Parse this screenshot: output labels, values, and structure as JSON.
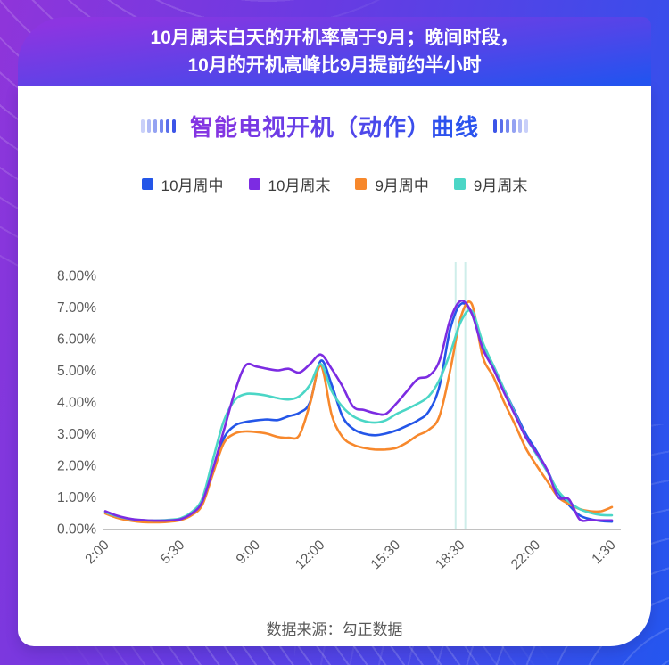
{
  "banner": {
    "line1": "10月周末白天的开机率高于9月；晚间时段，",
    "line2": "10月的开机高峰比9月提前约半小时"
  },
  "title": {
    "text": "智能电视开机（动作）曲线"
  },
  "footer": {
    "source": "数据来源：勾正数据"
  },
  "colors": {
    "series_oct_weekday": "#2456e8",
    "series_oct_weekend": "#7c2ce2",
    "series_sep_weekday": "#f7882c",
    "series_sep_weekend": "#4bd6c6",
    "axis_text": "#595959",
    "axis_line": "#c2c2c2",
    "reference_line": "#cfeeea"
  },
  "legend": [
    {
      "label": "10月周中",
      "color": "#2456e8"
    },
    {
      "label": "10月周末",
      "color": "#7c2ce2"
    },
    {
      "label": "9月周中",
      "color": "#f7882c"
    },
    {
      "label": "9月周末",
      "color": "#4bd6c6"
    }
  ],
  "chart_data": {
    "type": "line",
    "title": "智能电视开机（动作）曲线",
    "xlabel": "",
    "ylabel": "",
    "ylim": [
      0,
      8
    ],
    "grid": false,
    "legend_position": "top",
    "y_ticks": [
      "0.00%",
      "1.00%",
      "2.00%",
      "3.00%",
      "4.00%",
      "5.00%",
      "6.00%",
      "7.00%",
      "8.00%"
    ],
    "x": [
      "2:00",
      "2:30",
      "3:00",
      "3:30",
      "4:00",
      "4:30",
      "5:00",
      "5:30",
      "6:00",
      "6:30",
      "7:00",
      "7:30",
      "8:00",
      "8:30",
      "9:00",
      "9:30",
      "10:00",
      "10:30",
      "11:00",
      "11:30",
      "12:00",
      "12:30",
      "13:00",
      "13:30",
      "14:00",
      "14:30",
      "15:00",
      "15:30",
      "16:00",
      "16:30",
      "17:00",
      "17:30",
      "18:00",
      "18:30",
      "19:00",
      "19:30",
      "20:00",
      "20:30",
      "21:00",
      "21:30",
      "22:00",
      "22:30",
      "23:00",
      "23:30",
      "0:00",
      "0:30",
      "1:00",
      "1:30"
    ],
    "x_tick_indices": [
      0,
      7,
      14,
      20,
      27,
      33,
      40,
      47
    ],
    "x_tick_labels": [
      "2:00",
      "5:30",
      "9:00",
      "12:00",
      "15:30",
      "18:30",
      "22:00",
      "1:30"
    ],
    "series": [
      {
        "name": "10月周中",
        "color": "#2456e8",
        "unit": "%",
        "values": [
          0.5,
          0.38,
          0.3,
          0.26,
          0.24,
          0.23,
          0.24,
          0.28,
          0.45,
          0.8,
          1.8,
          2.85,
          3.25,
          3.37,
          3.42,
          3.45,
          3.43,
          3.55,
          3.66,
          4.0,
          5.3,
          4.55,
          3.55,
          3.15,
          3.0,
          2.95,
          3.0,
          3.1,
          3.25,
          3.42,
          3.7,
          4.5,
          6.3,
          7.1,
          6.8,
          5.8,
          5.15,
          4.4,
          3.7,
          3.0,
          2.45,
          1.85,
          1.15,
          0.75,
          0.42,
          0.3,
          0.24,
          0.22
        ]
      },
      {
        "name": "10月周末",
        "color": "#7c2ce2",
        "unit": "%",
        "values": [
          0.55,
          0.42,
          0.33,
          0.28,
          0.26,
          0.25,
          0.26,
          0.3,
          0.47,
          0.85,
          1.9,
          3.1,
          4.3,
          5.15,
          5.12,
          5.05,
          5.0,
          5.05,
          4.93,
          5.2,
          5.5,
          5.05,
          4.5,
          3.85,
          3.75,
          3.65,
          3.62,
          3.95,
          4.35,
          4.73,
          4.82,
          5.3,
          6.6,
          7.2,
          6.8,
          5.7,
          5.05,
          4.3,
          3.6,
          2.9,
          2.4,
          1.85,
          1.0,
          0.93,
          0.3,
          0.27,
          0.26,
          0.26
        ]
      },
      {
        "name": "9月周中",
        "color": "#f7882c",
        "unit": "%",
        "values": [
          0.48,
          0.35,
          0.27,
          0.22,
          0.2,
          0.2,
          0.22,
          0.27,
          0.42,
          0.75,
          1.75,
          2.7,
          3.0,
          3.07,
          3.05,
          3.0,
          2.9,
          2.87,
          2.95,
          3.95,
          5.15,
          3.6,
          2.9,
          2.65,
          2.55,
          2.5,
          2.5,
          2.55,
          2.72,
          2.95,
          3.12,
          3.55,
          5.0,
          6.7,
          7.1,
          5.45,
          4.8,
          4.0,
          3.3,
          2.55,
          2.0,
          1.5,
          1.0,
          0.78,
          0.62,
          0.55,
          0.55,
          0.68
        ]
      },
      {
        "name": "9月周末",
        "color": "#4bd6c6",
        "unit": "%",
        "values": [
          0.52,
          0.4,
          0.32,
          0.28,
          0.26,
          0.26,
          0.28,
          0.33,
          0.52,
          0.95,
          2.2,
          3.4,
          4.05,
          4.25,
          4.25,
          4.2,
          4.12,
          4.08,
          4.18,
          4.55,
          5.2,
          4.35,
          3.85,
          3.55,
          3.4,
          3.35,
          3.42,
          3.62,
          3.78,
          3.95,
          4.18,
          4.7,
          5.55,
          6.55,
          6.88,
          5.9,
          5.15,
          4.4,
          3.65,
          2.9,
          2.35,
          1.8,
          1.2,
          0.85,
          0.62,
          0.5,
          0.43,
          0.42
        ]
      }
    ],
    "reference_lines": [
      {
        "at_index": 32.5
      },
      {
        "at_index": 33.4
      }
    ]
  }
}
